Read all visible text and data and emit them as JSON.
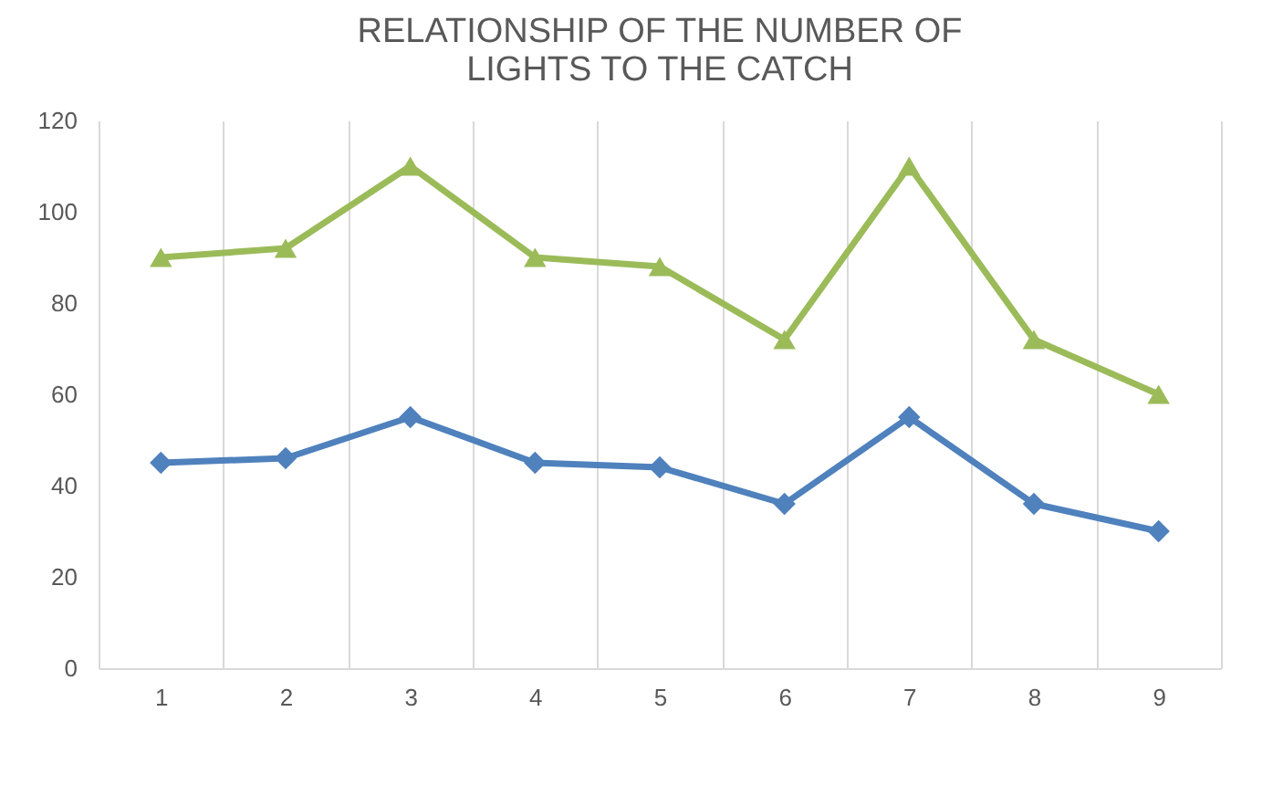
{
  "chart_data": {
    "type": "line",
    "title": "RELATIONSHIP OF THE NUMBER OF LIGHTS TO THE CATCH",
    "categories": [
      "1",
      "2",
      "3",
      "4",
      "5",
      "6",
      "7",
      "8",
      "9"
    ],
    "series": [
      {
        "color": "#9bbb59",
        "marker": "triangle",
        "values": [
          90,
          92,
          110,
          90,
          88,
          72,
          110,
          72,
          60
        ]
      },
      {
        "color": "#4f81bd",
        "marker": "diamond",
        "values": [
          45,
          46,
          55,
          45,
          44,
          36,
          55,
          36,
          30
        ]
      }
    ],
    "ylim": [
      0,
      120
    ],
    "yticks": [
      0,
      20,
      40,
      60,
      80,
      100,
      120
    ],
    "grid": "x",
    "line_style": "solid"
  }
}
